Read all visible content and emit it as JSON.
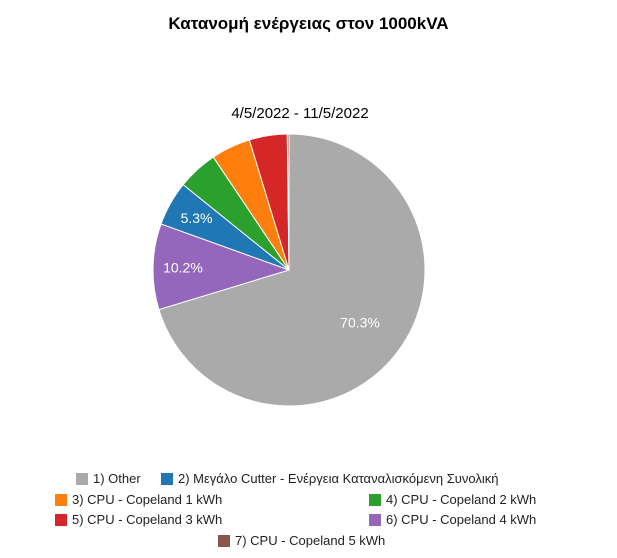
{
  "chart_data": {
    "type": "pie",
    "title": "Κατανομή ενέργειας στον 1000kVA",
    "subtitle": "4/5/2022 - 11/5/2022",
    "slices": [
      {
        "label": "1) Other",
        "value": 70.3,
        "color": "#aaaaaa",
        "data_label": "70.3%"
      },
      {
        "label": "2) Μεγάλο Cutter - Ενέργεια Καταναλισκόμενη Συνολική",
        "value": 5.3,
        "color": "#1f77b4",
        "data_label": "5.3%"
      },
      {
        "label": "3) CPU - Copeland 1 kWh",
        "value": 4.7,
        "color": "#ff7f0e",
        "data_label": ""
      },
      {
        "label": "4) CPU - Copeland 2 kWh",
        "value": 4.8,
        "color": "#2ca02c",
        "data_label": ""
      },
      {
        "label": "5) CPU - Copeland 3 kWh",
        "value": 4.5,
        "color": "#d62728",
        "data_label": ""
      },
      {
        "label": "6) CPU - Copeland 4 kWh",
        "value": 10.2,
        "color": "#9467bd",
        "data_label": "10.2%"
      },
      {
        "label": "7) CPU - Copeland 5 kWh",
        "value": 0.2,
        "color": "#8c564b",
        "data_label": ""
      }
    ],
    "draw_order": [
      0,
      5,
      1,
      3,
      2,
      4,
      6
    ],
    "legend_position": "bottom"
  }
}
